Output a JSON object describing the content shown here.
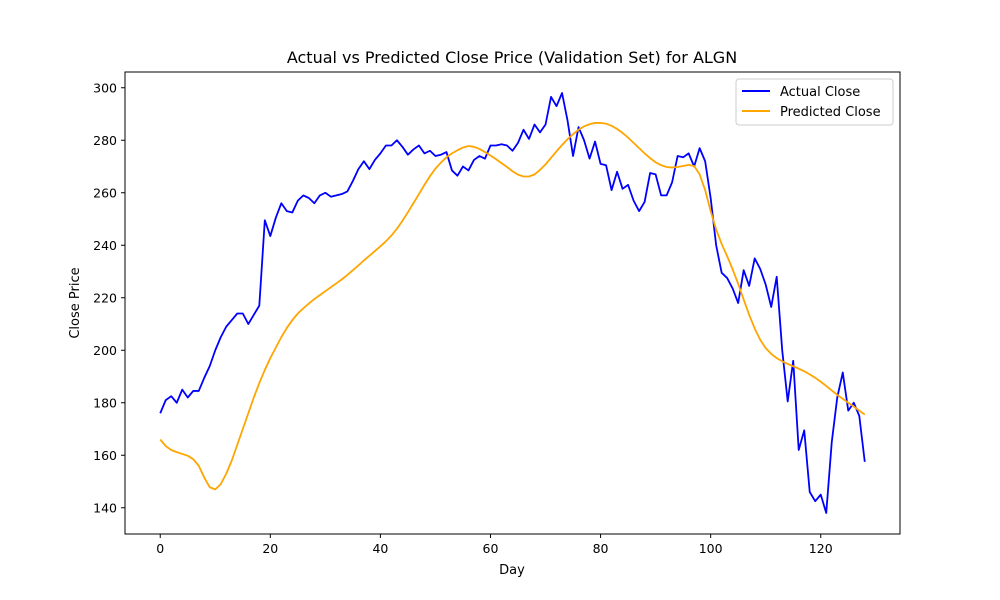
{
  "chart_data": {
    "type": "line",
    "title": "Actual vs Predicted Close Price (Validation Set) for ALGN",
    "xlabel": "Day",
    "ylabel": "Close Price",
    "xlim": [
      -6.4,
      134.4
    ],
    "ylim": [
      130,
      306
    ],
    "xticks": [
      0,
      20,
      40,
      60,
      80,
      100,
      120
    ],
    "yticks": [
      140,
      160,
      180,
      200,
      220,
      240,
      260,
      280,
      300
    ],
    "grid": false,
    "legend_position": "top-right",
    "series": [
      {
        "name": "Actual Close",
        "color": "#0000ff",
        "x": [
          0,
          1,
          2,
          3,
          4,
          5,
          6,
          7,
          8,
          9,
          10,
          11,
          12,
          13,
          14,
          15,
          16,
          17,
          18,
          19,
          20,
          21,
          22,
          23,
          24,
          25,
          26,
          27,
          28,
          29,
          30,
          31,
          32,
          33,
          34,
          35,
          36,
          37,
          38,
          39,
          40,
          41,
          42,
          43,
          44,
          45,
          46,
          47,
          48,
          49,
          50,
          51,
          52,
          53,
          54,
          55,
          56,
          57,
          58,
          59,
          60,
          61,
          62,
          63,
          64,
          65,
          66,
          67,
          68,
          69,
          70,
          71,
          72,
          73,
          74,
          75,
          76,
          77,
          78,
          79,
          80,
          81,
          82,
          83,
          84,
          85,
          86,
          87,
          88,
          89,
          90,
          91,
          92,
          93,
          94,
          95,
          96,
          97,
          98,
          99,
          100,
          101,
          102,
          103,
          104,
          105,
          106,
          107,
          108,
          109,
          110,
          111,
          112,
          113,
          114,
          115,
          116,
          117,
          118,
          119,
          120,
          121,
          122,
          123,
          124,
          125,
          126,
          127,
          128
        ],
        "y": [
          176,
          181,
          182.5,
          180,
          185,
          182,
          184.5,
          184.5,
          189.5,
          194,
          200,
          205,
          209,
          211.5,
          214,
          214,
          210,
          213.5,
          217,
          249.5,
          243.5,
          250.5,
          256,
          253,
          252.5,
          257,
          259,
          258,
          256,
          259,
          260,
          258.5,
          259,
          259.5,
          260.5,
          264.5,
          269,
          272,
          269,
          272.5,
          275,
          278,
          278,
          280,
          277.5,
          274.5,
          276.5,
          278,
          275,
          276,
          274,
          274.5,
          275.5,
          268.5,
          266.5,
          270,
          268.5,
          272.5,
          274,
          273,
          278,
          278,
          278.5,
          278,
          276,
          279,
          284,
          280.5,
          286,
          283,
          286,
          296.5,
          293,
          298,
          287.5,
          274,
          285,
          280,
          273,
          279.5,
          271,
          270.5,
          261,
          268,
          261.5,
          263,
          257,
          253,
          256.5,
          267.5,
          267,
          259,
          259,
          264,
          274,
          273.5,
          275,
          270,
          277,
          272,
          258,
          240,
          229.5,
          227.5,
          223.5,
          218,
          230.5,
          224.5,
          235,
          231,
          225,
          216.5,
          228,
          200,
          180.5,
          196,
          162,
          169.5,
          146,
          142.5,
          145,
          138,
          165,
          182,
          191.5,
          177,
          180,
          175,
          157.5
        ]
      },
      {
        "name": "Predicted Close",
        "color": "#ffa500",
        "x": [
          0,
          1,
          2,
          3,
          4,
          5,
          6,
          7,
          8,
          9,
          10,
          11,
          12,
          13,
          14,
          15,
          16,
          17,
          18,
          19,
          20,
          21,
          22,
          23,
          24,
          25,
          26,
          27,
          28,
          29,
          30,
          31,
          32,
          33,
          34,
          35,
          36,
          37,
          38,
          39,
          40,
          41,
          42,
          43,
          44,
          45,
          46,
          47,
          48,
          49,
          50,
          51,
          52,
          53,
          54,
          55,
          56,
          57,
          58,
          59,
          60,
          61,
          62,
          63,
          64,
          65,
          66,
          67,
          68,
          69,
          70,
          71,
          72,
          73,
          74,
          75,
          76,
          77,
          78,
          79,
          80,
          81,
          82,
          83,
          84,
          85,
          86,
          87,
          88,
          89,
          90,
          91,
          92,
          93,
          94,
          95,
          96,
          97,
          98,
          99,
          100,
          101,
          102,
          103,
          104,
          105,
          106,
          107,
          108,
          109,
          110,
          111,
          112,
          113,
          114,
          115,
          116,
          117,
          118,
          119,
          120,
          121,
          122,
          123,
          124,
          125,
          126,
          127,
          128
        ],
        "y": [
          166,
          163.5,
          162,
          161.2,
          160.5,
          159.8,
          158.5,
          156,
          151.5,
          147.8,
          147,
          149,
          153,
          158,
          164,
          170,
          176,
          182,
          187.5,
          192.5,
          197,
          201,
          205,
          208.5,
          211.5,
          214,
          216,
          217.8,
          219.5,
          221,
          222.5,
          224,
          225.5,
          227,
          228.7,
          230.5,
          232.3,
          234.2,
          236,
          237.8,
          239.6,
          241.5,
          243.7,
          246.3,
          249.3,
          252.6,
          256,
          259.5,
          263,
          266.3,
          269.2,
          271.5,
          273.5,
          275,
          276.2,
          277.2,
          277.8,
          277.5,
          276.7,
          275.5,
          274.2,
          272.8,
          271.3,
          269.8,
          268.2,
          266.9,
          266.2,
          266.2,
          267,
          268.7,
          270.8,
          273.3,
          275.8,
          278.2,
          280.4,
          282.3,
          284,
          285.3,
          286.1,
          286.6,
          286.6,
          286.3,
          285.5,
          284.3,
          282.8,
          281,
          279,
          277,
          275,
          273.2,
          271.6,
          270.5,
          269.8,
          269.6,
          269.8,
          270.2,
          270.6,
          270.2,
          267,
          261,
          253,
          246,
          240.5,
          235.8,
          230.8,
          225.3,
          219.3,
          213.5,
          208.3,
          204,
          200.8,
          198.6,
          197,
          195.8,
          194.8,
          193.9,
          193,
          192,
          190.8,
          189.5,
          188,
          186.4,
          184.7,
          183,
          181.5,
          180,
          178.6,
          177,
          175.5
        ]
      }
    ]
  }
}
